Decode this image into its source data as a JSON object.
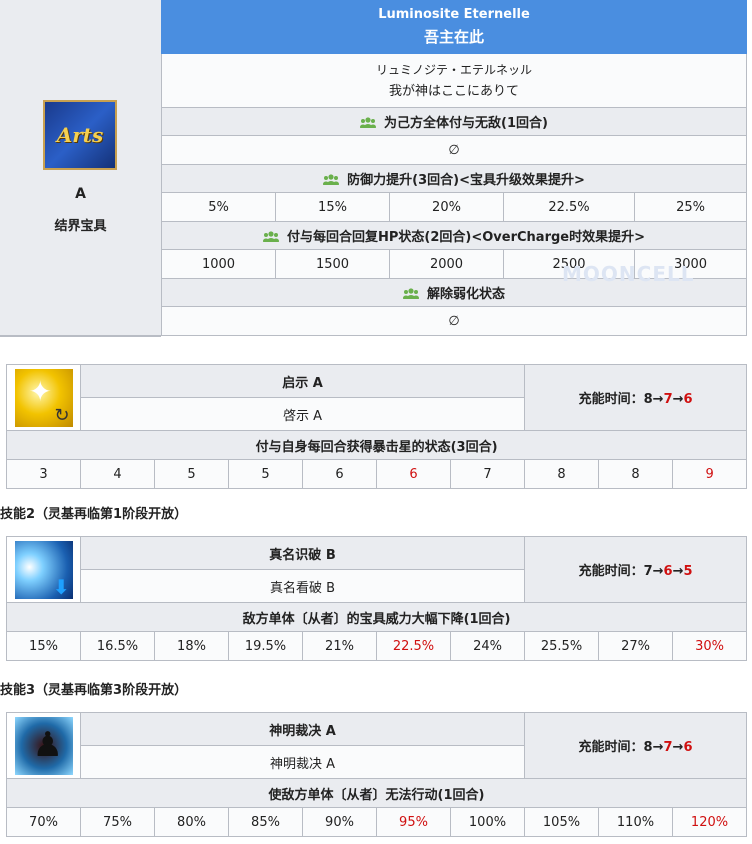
{
  "noble_phantasm": {
    "card": "Arts",
    "rank": "A",
    "type": "结界宝具",
    "title_en": "Luminosite Eternelle",
    "title_cn": "吾主在此",
    "ruby": "リュミノジテ・エテルネッル",
    "title_jp": "我が神はここにありて",
    "effects": [
      {
        "icon": "party-icon",
        "label": "为己方全体付与无敌(1回合)",
        "values": [
          "∅"
        ]
      },
      {
        "icon": "party-icon",
        "label": "防御力提升(3回合)<宝具升级效果提升>",
        "values": [
          "5%",
          "15%",
          "20%",
          "22.5%",
          "25%"
        ]
      },
      {
        "icon": "party-icon",
        "label": "付与每回合回复HP状态(2回合)<OverCharge时效果提升>",
        "values": [
          "1000",
          "1500",
          "2000",
          "2500",
          "3000"
        ]
      },
      {
        "icon": "party-icon",
        "label": "解除弱化状态",
        "values": [
          "∅"
        ]
      }
    ]
  },
  "watermark": "MOONCELL",
  "skills": [
    {
      "header": "",
      "icon": "star-gain-skill-icon",
      "name": "启示 A",
      "sub": "啓示 A",
      "cd_label": "充能时间：",
      "cd": [
        "8",
        "7",
        "6"
      ],
      "effect": "付与自身每回合获得暴击星的状态(3回合)",
      "values": [
        "3",
        "4",
        "5",
        "5",
        "6",
        "6",
        "7",
        "8",
        "8",
        "9"
      ]
    },
    {
      "header": "技能2（灵基再临第1阶段开放）",
      "icon": "np-down-skill-icon",
      "name": "真名识破 B",
      "sub": "真名看破 B",
      "cd_label": "充能时间：",
      "cd": [
        "7",
        "6",
        "5"
      ],
      "effect": "敌方单体〔从者〕的宝具威力大幅下降(1回合)",
      "values": [
        "15%",
        "16.5%",
        "18%",
        "19.5%",
        "21%",
        "22.5%",
        "24%",
        "25.5%",
        "27%",
        "30%"
      ]
    },
    {
      "header": "技能3（灵基再临第3阶段开放）",
      "icon": "stun-skill-icon",
      "name": "神明裁决 A",
      "sub": "神明裁决 A",
      "cd_label": "充能时间：",
      "cd": [
        "8",
        "7",
        "6"
      ],
      "effect": "使敌方单体〔从者〕无法行动(1回合)",
      "values": [
        "70%",
        "75%",
        "80%",
        "85%",
        "90%",
        "95%",
        "100%",
        "105%",
        "110%",
        "120%"
      ]
    }
  ],
  "colors": {
    "header_blue": "#4a8ee0",
    "cell_gray": "#eaecf0",
    "highlight_red": "#d01010",
    "party_icon_green": "#6ab04c"
  }
}
